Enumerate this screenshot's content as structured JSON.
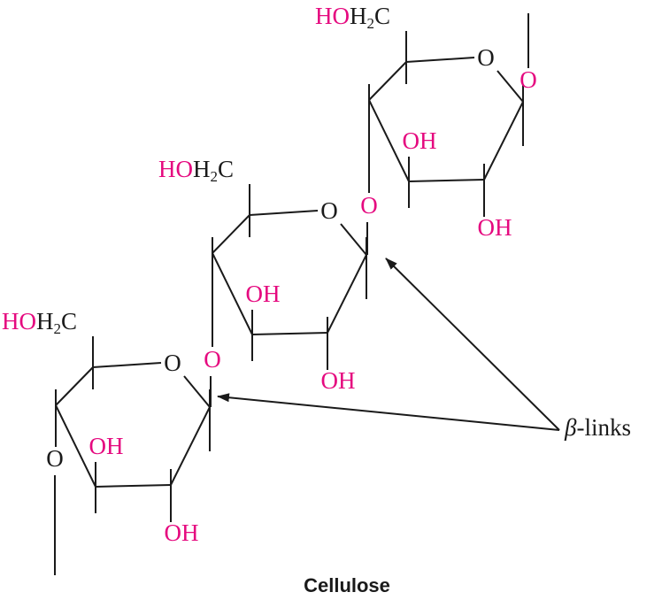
{
  "rings": [
    {
      "hydroxymethyl": {
        "hydroxyl": "HO",
        "hydrogen": "H",
        "subscript": "2",
        "carbon": "C"
      },
      "ring_oxygen": "O",
      "oh_upper": "OH",
      "oh_lower": "OH"
    },
    {
      "hydroxymethyl": {
        "hydroxyl": "HO",
        "hydrogen": "H",
        "subscript": "2",
        "carbon": "C"
      },
      "ring_oxygen": "O",
      "oh_upper": "OH",
      "oh_lower": "OH"
    },
    {
      "hydroxymethyl": {
        "hydroxyl": "HO",
        "hydrogen": "H",
        "subscript": "2",
        "carbon": "C"
      },
      "ring_oxygen": "O",
      "oh_upper": "OH",
      "oh_lower": "OH"
    }
  ],
  "terminal_oxygens": [
    "O",
    "O"
  ],
  "glycosidic_oxygens": [
    "O",
    "O"
  ],
  "annotation": {
    "symbol": "β",
    "text": "-links"
  },
  "caption": "Cellulose"
}
